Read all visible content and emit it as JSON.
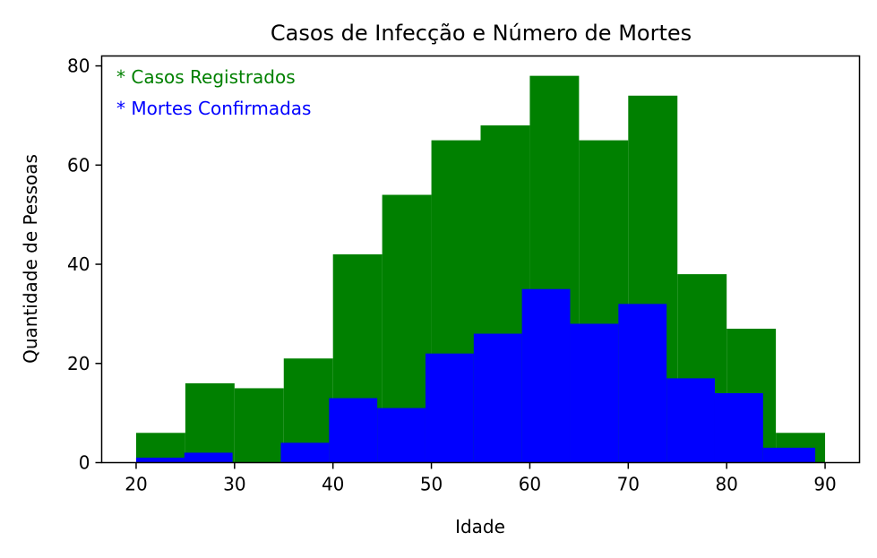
{
  "chart_data": {
    "type": "bar",
    "title": "Casos de Infecção e Número de Mortes",
    "xlabel": "Idade",
    "ylabel": "Quantidade de Pessoas",
    "xlim": [
      16.5,
      93.5
    ],
    "ylim": [
      0,
      82
    ],
    "xticks": [
      20,
      30,
      40,
      50,
      60,
      70,
      80,
      90
    ],
    "yticks": [
      0,
      20,
      40,
      60,
      80
    ],
    "grid": false,
    "legend_placement": "top-left",
    "series": [
      {
        "name": "* Casos Registrados",
        "color": "#008000",
        "bins": [
          {
            "x0": 20,
            "x1": 25,
            "value": 6
          },
          {
            "x0": 25,
            "x1": 30,
            "value": 16
          },
          {
            "x0": 30,
            "x1": 35,
            "value": 15
          },
          {
            "x0": 35,
            "x1": 40,
            "value": 21
          },
          {
            "x0": 40,
            "x1": 45,
            "value": 42
          },
          {
            "x0": 45,
            "x1": 50,
            "value": 54
          },
          {
            "x0": 50,
            "x1": 55,
            "value": 65
          },
          {
            "x0": 55,
            "x1": 60,
            "value": 68
          },
          {
            "x0": 60,
            "x1": 65,
            "value": 78
          },
          {
            "x0": 65,
            "x1": 70,
            "value": 65
          },
          {
            "x0": 70,
            "x1": 75,
            "value": 74
          },
          {
            "x0": 75,
            "x1": 80,
            "value": 38
          },
          {
            "x0": 80,
            "x1": 85,
            "value": 27
          },
          {
            "x0": 85,
            "x1": 90,
            "value": 6
          }
        ]
      },
      {
        "name": "* Mortes Confirmadas",
        "color": "#0000ff",
        "bins": [
          {
            "x0": 20.0,
            "x1": 24.9,
            "value": 1
          },
          {
            "x0": 24.9,
            "x1": 29.8,
            "value": 2
          },
          {
            "x0": 29.8,
            "x1": 34.7,
            "value": 0
          },
          {
            "x0": 34.7,
            "x1": 39.6,
            "value": 4
          },
          {
            "x0": 39.6,
            "x1": 44.5,
            "value": 13
          },
          {
            "x0": 44.5,
            "x1": 49.4,
            "value": 11
          },
          {
            "x0": 49.4,
            "x1": 54.3,
            "value": 22
          },
          {
            "x0": 54.3,
            "x1": 59.2,
            "value": 26
          },
          {
            "x0": 59.2,
            "x1": 64.1,
            "value": 35
          },
          {
            "x0": 64.1,
            "x1": 69.0,
            "value": 28
          },
          {
            "x0": 69.0,
            "x1": 73.9,
            "value": 32
          },
          {
            "x0": 73.9,
            "x1": 78.8,
            "value": 17
          },
          {
            "x0": 78.8,
            "x1": 83.7,
            "value": 14
          },
          {
            "x0": 83.7,
            "x1": 89.0,
            "value": 3
          }
        ]
      }
    ]
  }
}
